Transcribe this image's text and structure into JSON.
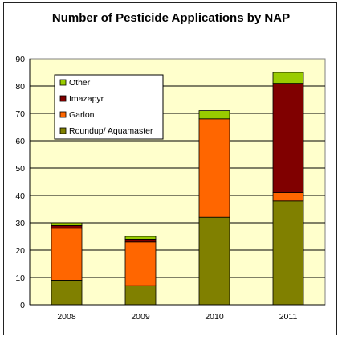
{
  "chart_data": {
    "type": "bar",
    "stacked": true,
    "title": "Number of Pesticide Applications by NAP",
    "xlabel": "",
    "ylabel": "",
    "ylim": [
      0,
      90
    ],
    "yticks": [
      0,
      10,
      20,
      30,
      40,
      50,
      60,
      70,
      80,
      90
    ],
    "grid": true,
    "legend_position": "top-left",
    "plot_background": "#ffffcc",
    "categories": [
      "2008",
      "2009",
      "2010",
      "2011"
    ],
    "series": [
      {
        "name": "Roundup/ Aquamaster",
        "color": "#808000",
        "values": [
          9,
          7,
          32,
          38
        ]
      },
      {
        "name": "Garlon",
        "color": "#ff6600",
        "values": [
          19,
          16,
          36,
          3
        ]
      },
      {
        "name": "Imazapyr",
        "color": "#800000",
        "values": [
          1,
          1,
          0,
          40
        ]
      },
      {
        "name": "Other",
        "color": "#99cc00",
        "values": [
          1,
          1,
          3,
          4
        ]
      }
    ],
    "legend_order": [
      "Other",
      "Imazapyr",
      "Garlon",
      "Roundup/ Aquamaster"
    ]
  }
}
